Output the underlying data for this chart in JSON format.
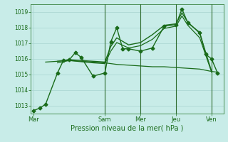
{
  "background_color": "#c8ece8",
  "grid_color": "#a8d4d0",
  "line_color": "#1a6b1a",
  "ylabel_ticks": [
    1013,
    1014,
    1015,
    1016,
    1017,
    1018,
    1019
  ],
  "ylim": [
    1012.5,
    1019.5
  ],
  "xlabel": "Pression niveau de la mer( hPa )",
  "xtick_labels": [
    "Mar",
    "Sam",
    "Mer",
    "Jeu",
    "Ven"
  ],
  "xtick_positions": [
    0,
    12,
    18,
    24,
    30
  ],
  "xlim": [
    -0.5,
    32
  ],
  "series": {
    "line1": {
      "x": [
        0,
        1,
        2,
        4,
        5,
        6,
        7,
        8,
        10,
        12,
        13,
        14,
        15,
        16,
        18,
        20,
        22,
        24,
        25,
        26,
        28,
        29,
        30,
        31
      ],
      "y": [
        1012.7,
        1012.85,
        1013.1,
        1015.1,
        1015.9,
        1015.95,
        1016.4,
        1016.1,
        1014.9,
        1015.1,
        1017.1,
        1018.0,
        1016.65,
        1016.65,
        1016.5,
        1016.7,
        1018.1,
        1018.2,
        1019.2,
        1018.3,
        1017.7,
        1016.3,
        1016.0,
        1015.1
      ],
      "marker": "D",
      "markersize": 2.5,
      "linewidth": 1.0
    },
    "line2": {
      "x": [
        4,
        6,
        8,
        10,
        12,
        13,
        14,
        16,
        18,
        20,
        22,
        24,
        25,
        26,
        28,
        30
      ],
      "y": [
        1015.85,
        1015.95,
        1015.9,
        1015.85,
        1015.8,
        1016.8,
        1017.35,
        1016.9,
        1017.05,
        1017.55,
        1018.15,
        1018.25,
        1018.95,
        1018.35,
        1017.65,
        1015.2
      ],
      "marker": null,
      "linewidth": 1.0
    },
    "line3": {
      "x": [
        4,
        6,
        8,
        10,
        12,
        13,
        14,
        16,
        18,
        20,
        22,
        24,
        25,
        26,
        28,
        30
      ],
      "y": [
        1015.75,
        1015.9,
        1015.82,
        1015.75,
        1015.7,
        1016.5,
        1017.05,
        1016.7,
        1016.85,
        1017.25,
        1017.95,
        1018.1,
        1018.75,
        1018.15,
        1017.35,
        1015.15
      ],
      "marker": null,
      "linewidth": 0.9
    },
    "line4": {
      "x": [
        2,
        4,
        6,
        8,
        10,
        12,
        14,
        16,
        18,
        20,
        22,
        24,
        26,
        28,
        30,
        31
      ],
      "y": [
        1015.8,
        1015.85,
        1015.9,
        1015.85,
        1015.8,
        1015.75,
        1015.65,
        1015.6,
        1015.55,
        1015.5,
        1015.5,
        1015.45,
        1015.4,
        1015.35,
        1015.2,
        1015.15
      ],
      "marker": null,
      "linewidth": 0.9
    }
  },
  "vlines_x": [
    12,
    18,
    24,
    30
  ],
  "vline_color": "#2d6b2d"
}
